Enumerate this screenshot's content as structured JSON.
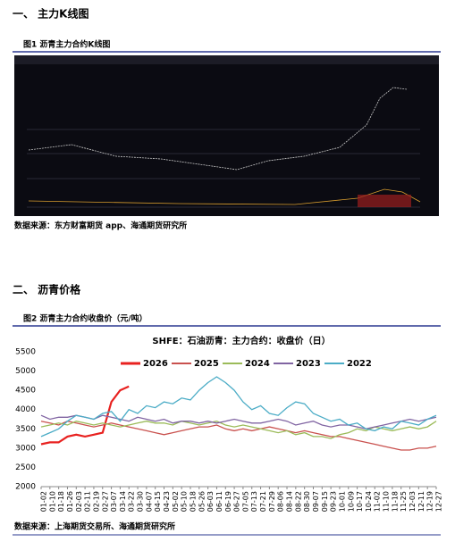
{
  "document": {
    "section1": "一、  主力K线图",
    "figure1_caption": "图1   沥青主力合约K线图",
    "figure1_source": "数据来源：东方财富期货 app、海通期货研究所",
    "section2": "二、  沥青价格",
    "figure2_caption": "图2   沥青主力合约收盘价（元/吨）",
    "figure2_source": "数据来源：上海期货交易所、海通期货研究所"
  },
  "chart_data": {
    "type": "line",
    "title": "SHFE：石油沥青：主力合约：收盘价（日）",
    "categories": [
      "01-02",
      "01-10",
      "01-18",
      "01-26",
      "02-03",
      "02-11",
      "02-19",
      "02-27",
      "03-07",
      "03-14",
      "03-22",
      "03-30",
      "04-07",
      "04-15",
      "04-23",
      "05-02",
      "05-10",
      "05-18",
      "05-26",
      "06-03",
      "06-11",
      "06-19",
      "06-27",
      "07-05",
      "07-13",
      "07-21",
      "07-29",
      "08-06",
      "08-14",
      "08-22",
      "08-30",
      "09-07",
      "09-15",
      "09-23",
      "10-01",
      "10-09",
      "10-17",
      "10-24",
      "11-02",
      "11-10",
      "11-18",
      "11-25",
      "12-03",
      "12-11",
      "12-19",
      "12-27"
    ],
    "ylim": [
      2000,
      5500
    ],
    "yticks": [
      2000,
      2500,
      3000,
      3500,
      4000,
      4500,
      5000,
      5500
    ],
    "series": [
      {
        "name": "2026",
        "color": "#e8211f",
        "values": [
          3100,
          3150,
          3150,
          3300,
          3350,
          3300,
          3350,
          3400,
          4200,
          4500,
          4600,
          null,
          null,
          null,
          null,
          null,
          null,
          null,
          null,
          null,
          null,
          null,
          null,
          null,
          null,
          null,
          null,
          null,
          null,
          null,
          null,
          null,
          null,
          null,
          null,
          null,
          null,
          null,
          null,
          null,
          null,
          null,
          null,
          null,
          null,
          null
        ]
      },
      {
        "name": "2025",
        "color": "#c9514e",
        "values": [
          3700,
          3650,
          3600,
          3700,
          3650,
          3600,
          3550,
          3600,
          3650,
          3600,
          3550,
          3500,
          3450,
          3400,
          3350,
          3400,
          3450,
          3500,
          3550,
          3550,
          3600,
          3500,
          3450,
          3500,
          3450,
          3500,
          3550,
          3500,
          3450,
          3400,
          3450,
          3400,
          3350,
          3300,
          3300,
          3250,
          3200,
          3150,
          3100,
          3050,
          3000,
          2950,
          2950,
          3000,
          3000,
          3050
        ]
      },
      {
        "name": "2024",
        "color": "#9bbb59",
        "values": [
          3550,
          3600,
          3650,
          3600,
          3700,
          3650,
          3600,
          3650,
          3600,
          3550,
          3600,
          3650,
          3700,
          3650,
          3650,
          3600,
          3700,
          3650,
          3600,
          3650,
          3700,
          3600,
          3550,
          3600,
          3550,
          3500,
          3450,
          3400,
          3450,
          3350,
          3400,
          3300,
          3300,
          3250,
          3350,
          3400,
          3500,
          3450,
          3550,
          3500,
          3450,
          3500,
          3550,
          3500,
          3550,
          3700
        ]
      },
      {
        "name": "2023",
        "color": "#8064a2",
        "values": [
          3850,
          3750,
          3800,
          3800,
          3850,
          3800,
          3750,
          3850,
          3800,
          3750,
          3700,
          3800,
          3750,
          3700,
          3750,
          3650,
          3700,
          3700,
          3650,
          3700,
          3650,
          3700,
          3750,
          3700,
          3650,
          3650,
          3700,
          3750,
          3700,
          3600,
          3650,
          3700,
          3600,
          3550,
          3600,
          3600,
          3550,
          3500,
          3550,
          3600,
          3650,
          3700,
          3750,
          3700,
          3750,
          3800
        ]
      },
      {
        "name": "2022",
        "color": "#4bacc6",
        "values": [
          3300,
          3400,
          3500,
          3700,
          3850,
          3800,
          3750,
          3900,
          3950,
          3700,
          4000,
          3900,
          4100,
          4050,
          4200,
          4150,
          4300,
          4250,
          4500,
          4700,
          4850,
          4700,
          4500,
          4200,
          4000,
          4100,
          3900,
          3850,
          4050,
          4200,
          4150,
          3900,
          3800,
          3700,
          3750,
          3600,
          3650,
          3500,
          3450,
          3550,
          3500,
          3700,
          3650,
          3600,
          3750,
          3850
        ]
      }
    ]
  }
}
